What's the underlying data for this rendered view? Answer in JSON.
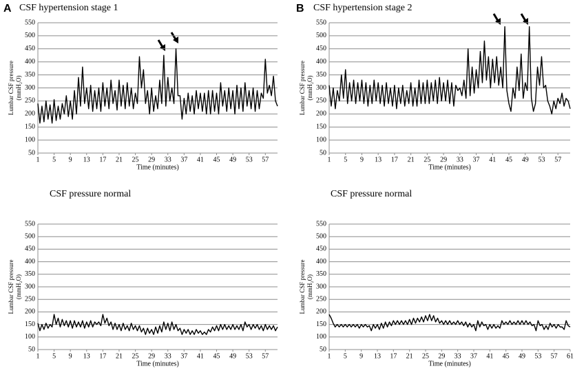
{
  "chart_data": [
    {
      "type": "line",
      "panel_label": "A",
      "title": "CSF hypertension stage 1",
      "x_label": "Time (minutes)",
      "y_label": [
        "Lumbar CSF pressure",
        "(mmH₂O)"
      ],
      "color": "#000000",
      "grid": true,
      "xlim": [
        1,
        60
      ],
      "xticks": [
        1,
        5,
        9,
        13,
        17,
        21,
        25,
        29,
        33,
        37,
        41,
        45,
        49,
        53,
        57
      ],
      "ylim": [
        50,
        550
      ],
      "yticks": [
        50,
        100,
        150,
        200,
        250,
        300,
        350,
        400,
        450,
        500,
        550
      ],
      "x": [
        1,
        1.5,
        2,
        2.5,
        3,
        3.5,
        4,
        4.5,
        5,
        5.5,
        6,
        6.5,
        7,
        7.5,
        8,
        8.5,
        9,
        9.5,
        10,
        10.5,
        11,
        11.5,
        12,
        12.5,
        13,
        13.5,
        14,
        14.5,
        15,
        15.5,
        16,
        16.5,
        17,
        17.5,
        18,
        18.5,
        19,
        19.5,
        20,
        20.5,
        21,
        21.5,
        22,
        22.5,
        23,
        23.5,
        24,
        24.5,
        25,
        25.5,
        26,
        26.5,
        27,
        27.5,
        28,
        28.5,
        29,
        29.5,
        30,
        30.5,
        31,
        31.5,
        32,
        32.5,
        33,
        33.5,
        34,
        34.5,
        35,
        35.5,
        36,
        36.5,
        37,
        37.5,
        38,
        38.5,
        39,
        39.5,
        40,
        40.5,
        41,
        41.5,
        42,
        42.5,
        43,
        43.5,
        44,
        44.5,
        45,
        45.5,
        46,
        46.5,
        47,
        47.5,
        48,
        48.5,
        49,
        49.5,
        50,
        50.5,
        51,
        51.5,
        52,
        52.5,
        53,
        53.5,
        54,
        54.5,
        55,
        55.5,
        56,
        56.5,
        57,
        57.5,
        58,
        58.5,
        59,
        59.5,
        60
      ],
      "values": [
        240,
        165,
        230,
        170,
        250,
        180,
        235,
        165,
        255,
        175,
        230,
        180,
        240,
        200,
        270,
        190,
        250,
        180,
        290,
        200,
        340,
        230,
        380,
        240,
        300,
        220,
        310,
        210,
        290,
        220,
        300,
        210,
        320,
        230,
        300,
        220,
        330,
        240,
        290,
        215,
        330,
        230,
        310,
        220,
        320,
        230,
        300,
        220,
        280,
        240,
        420,
        300,
        370,
        240,
        290,
        200,
        300,
        210,
        270,
        220,
        330,
        240,
        425,
        230,
        340,
        250,
        300,
        240,
        450,
        270,
        270,
        180,
        260,
        200,
        280,
        210,
        270,
        200,
        290,
        220,
        280,
        210,
        280,
        200,
        290,
        200,
        290,
        210,
        280,
        200,
        320,
        230,
        290,
        210,
        300,
        220,
        290,
        200,
        310,
        220,
        300,
        210,
        320,
        230,
        290,
        220,
        300,
        210,
        290,
        220,
        280,
        260,
        410,
        280,
        310,
        270,
        345,
        250,
        230
      ]
    },
    {
      "type": "line",
      "panel_label": "B",
      "title": "CSF hypertension stage 2",
      "x_label": "Time (minutes)",
      "y_label": [
        "Lumbar CSF pressure",
        "(mmH₂O)"
      ],
      "color": "#000000",
      "grid": true,
      "xlim": [
        1,
        60
      ],
      "xticks": [
        1,
        5,
        9,
        13,
        17,
        21,
        25,
        29,
        33,
        37,
        41,
        45,
        49,
        53,
        57
      ],
      "ylim": [
        50,
        550
      ],
      "yticks": [
        50,
        100,
        150,
        200,
        250,
        300,
        350,
        400,
        450,
        500,
        550
      ],
      "x": [
        1,
        1.5,
        2,
        2.5,
        3,
        3.5,
        4,
        4.5,
        5,
        5.5,
        6,
        6.5,
        7,
        7.5,
        8,
        8.5,
        9,
        9.5,
        10,
        10.5,
        11,
        11.5,
        12,
        12.5,
        13,
        13.5,
        14,
        14.5,
        15,
        15.5,
        16,
        16.5,
        17,
        17.5,
        18,
        18.5,
        19,
        19.5,
        20,
        20.5,
        21,
        21.5,
        22,
        22.5,
        23,
        23.5,
        24,
        24.5,
        25,
        25.5,
        26,
        26.5,
        27,
        27.5,
        28,
        28.5,
        29,
        29.5,
        30,
        30.5,
        31,
        31.5,
        32,
        32.5,
        33,
        33.5,
        34,
        34.5,
        35,
        35.5,
        36,
        36.5,
        37,
        37.5,
        38,
        38.5,
        39,
        39.5,
        40,
        40.5,
        41,
        41.5,
        42,
        42.5,
        43,
        43.5,
        44,
        44.5,
        45,
        45.5,
        46,
        46.5,
        47,
        47.5,
        48,
        48.5,
        49,
        49.5,
        50,
        50.5,
        51,
        51.5,
        52,
        52.5,
        53,
        53.5,
        54,
        54.5,
        55,
        55.5,
        56,
        56.5,
        57,
        57.5,
        58,
        58.5,
        59,
        59.5,
        60
      ],
      "values": [
        310,
        230,
        300,
        220,
        290,
        250,
        350,
        260,
        370,
        240,
        320,
        250,
        330,
        240,
        320,
        250,
        330,
        240,
        320,
        230,
        310,
        240,
        330,
        250,
        320,
        240,
        310,
        230,
        320,
        240,
        300,
        230,
        310,
        220,
        300,
        240,
        310,
        230,
        290,
        240,
        320,
        230,
        300,
        230,
        330,
        240,
        320,
        240,
        330,
        240,
        320,
        250,
        330,
        240,
        340,
        250,
        320,
        250,
        330,
        240,
        320,
        230,
        310,
        290,
        300,
        270,
        330,
        260,
        450,
        270,
        380,
        280,
        370,
        300,
        440,
        320,
        480,
        330,
        420,
        300,
        410,
        320,
        420,
        310,
        380,
        300,
        535,
        290,
        240,
        210,
        300,
        260,
        380,
        290,
        430,
        260,
        320,
        290,
        535,
        260,
        210,
        240,
        380,
        310,
        420,
        300,
        310,
        250,
        230,
        200,
        250,
        220,
        260,
        240,
        280,
        230,
        260,
        250,
        220
      ]
    },
    {
      "type": "line",
      "title": "CSF pressure normal",
      "x_label": "Time (minutes)",
      "y_label": [
        "Lumbar CSF pressure",
        "(mmH₂O)"
      ],
      "color": "#000000",
      "grid": true,
      "xlim": [
        1,
        60
      ],
      "xticks": [
        1,
        5,
        9,
        13,
        17,
        21,
        25,
        29,
        33,
        37,
        41,
        45,
        49,
        53,
        57
      ],
      "ylim": [
        50,
        550
      ],
      "yticks": [
        50,
        100,
        150,
        200,
        250,
        300,
        350,
        400,
        450,
        500,
        550
      ],
      "x": [
        1,
        1.5,
        2,
        2.5,
        3,
        3.5,
        4,
        4.5,
        5,
        5.5,
        6,
        6.5,
        7,
        7.5,
        8,
        8.5,
        9,
        9.5,
        10,
        10.5,
        11,
        11.5,
        12,
        12.5,
        13,
        13.5,
        14,
        14.5,
        15,
        15.5,
        16,
        16.5,
        17,
        17.5,
        18,
        18.5,
        19,
        19.5,
        20,
        20.5,
        21,
        21.5,
        22,
        22.5,
        23,
        23.5,
        24,
        24.5,
        25,
        25.5,
        26,
        26.5,
        27,
        27.5,
        28,
        28.5,
        29,
        29.5,
        30,
        30.5,
        31,
        31.5,
        32,
        32.5,
        33,
        33.5,
        34,
        34.5,
        35,
        35.5,
        36,
        36.5,
        37,
        37.5,
        38,
        38.5,
        39,
        39.5,
        40,
        40.5,
        41,
        41.5,
        42,
        42.5,
        43,
        43.5,
        44,
        44.5,
        45,
        45.5,
        46,
        46.5,
        47,
        47.5,
        48,
        48.5,
        49,
        49.5,
        50,
        50.5,
        51,
        51.5,
        52,
        52.5,
        53,
        53.5,
        54,
        54.5,
        55,
        55.5,
        56,
        56.5,
        57,
        57.5,
        58,
        58.5,
        59,
        59.5,
        60
      ],
      "values": [
        155,
        125,
        150,
        130,
        155,
        135,
        150,
        140,
        190,
        150,
        175,
        140,
        170,
        145,
        165,
        140,
        165,
        135,
        165,
        140,
        160,
        140,
        165,
        135,
        160,
        140,
        165,
        140,
        160,
        150,
        160,
        145,
        190,
        155,
        175,
        145,
        160,
        130,
        155,
        130,
        150,
        125,
        155,
        130,
        145,
        125,
        155,
        130,
        145,
        125,
        145,
        120,
        135,
        110,
        135,
        115,
        130,
        110,
        140,
        115,
        145,
        120,
        160,
        130,
        155,
        125,
        160,
        130,
        150,
        125,
        135,
        110,
        130,
        115,
        130,
        110,
        125,
        110,
        130,
        115,
        125,
        110,
        120,
        110,
        130,
        120,
        140,
        125,
        145,
        125,
        150,
        130,
        150,
        130,
        145,
        130,
        150,
        130,
        145,
        130,
        150,
        125,
        160,
        140,
        150,
        130,
        150,
        135,
        150,
        130,
        145,
        125,
        150,
        130,
        145,
        130,
        145,
        125,
        140
      ]
    },
    {
      "type": "line",
      "title": "CSF pressure normal",
      "x_label": "Time (minutes)",
      "y_label": [
        "Lumbar CSF pressure",
        "(mmH₂O)"
      ],
      "color": "#000000",
      "grid": true,
      "xlim": [
        1,
        61
      ],
      "xticks": [
        1,
        5,
        9,
        13,
        17,
        21,
        25,
        29,
        33,
        37,
        41,
        45,
        49,
        53,
        57,
        61
      ],
      "ylim": [
        50,
        550
      ],
      "yticks": [
        50,
        100,
        150,
        200,
        250,
        300,
        350,
        400,
        450,
        500,
        550
      ],
      "x": [
        1,
        1.5,
        2,
        2.5,
        3,
        3.5,
        4,
        4.5,
        5,
        5.5,
        6,
        6.5,
        7,
        7.5,
        8,
        8.5,
        9,
        9.5,
        10,
        10.5,
        11,
        11.5,
        12,
        12.5,
        13,
        13.5,
        14,
        14.5,
        15,
        15.5,
        16,
        16.5,
        17,
        17.5,
        18,
        18.5,
        19,
        19.5,
        20,
        20.5,
        21,
        21.5,
        22,
        22.5,
        23,
        23.5,
        24,
        24.5,
        25,
        25.5,
        26,
        26.5,
        27,
        27.5,
        28,
        28.5,
        29,
        29.5,
        30,
        30.5,
        31,
        31.5,
        32,
        32.5,
        33,
        33.5,
        34,
        34.5,
        35,
        35.5,
        36,
        36.5,
        37,
        37.5,
        38,
        38.5,
        39,
        39.5,
        40,
        40.5,
        41,
        41.5,
        42,
        42.5,
        43,
        43.5,
        44,
        44.5,
        45,
        45.5,
        46,
        46.5,
        47,
        47.5,
        48,
        48.5,
        49,
        49.5,
        50,
        50.5,
        51,
        51.5,
        52,
        52.5,
        53,
        53.5,
        54,
        54.5,
        55,
        55.5,
        56,
        56.5,
        57,
        57.5,
        58,
        58.5,
        59,
        59.5,
        60,
        60.5,
        61
      ],
      "values": [
        190,
        175,
        155,
        140,
        150,
        140,
        150,
        140,
        150,
        140,
        150,
        140,
        150,
        140,
        150,
        135,
        150,
        140,
        150,
        140,
        145,
        125,
        150,
        135,
        150,
        130,
        155,
        135,
        160,
        140,
        160,
        145,
        165,
        150,
        165,
        150,
        165,
        150,
        165,
        150,
        170,
        150,
        175,
        155,
        175,
        160,
        180,
        160,
        185,
        165,
        190,
        165,
        185,
        160,
        175,
        155,
        165,
        150,
        165,
        150,
        165,
        150,
        160,
        150,
        165,
        150,
        160,
        145,
        160,
        140,
        155,
        140,
        150,
        125,
        165,
        140,
        160,
        145,
        150,
        130,
        150,
        135,
        150,
        135,
        145,
        135,
        165,
        150,
        160,
        150,
        165,
        150,
        160,
        150,
        165,
        150,
        165,
        150,
        165,
        150,
        160,
        145,
        150,
        125,
        165,
        145,
        150,
        130,
        145,
        130,
        155,
        140,
        150,
        135,
        150,
        140,
        140,
        130,
        165,
        145,
        140
      ]
    }
  ]
}
